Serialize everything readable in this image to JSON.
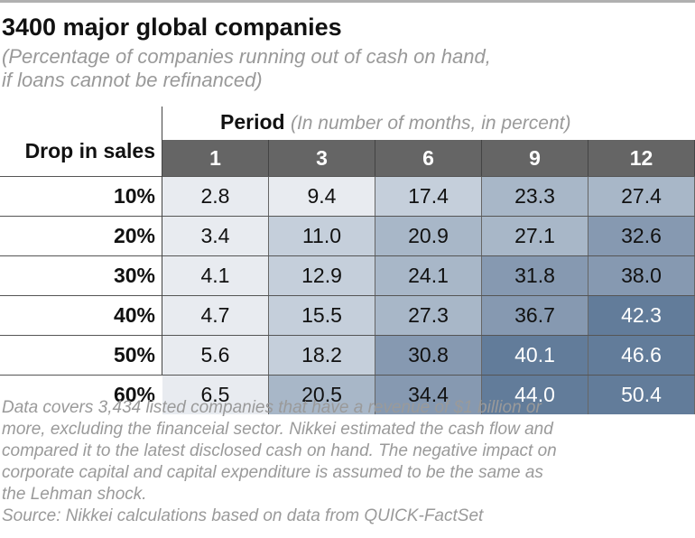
{
  "title": "3400 major global companies",
  "subtitle_lines": [
    "(Percentage of companies running out of cash on hand,",
    "if loans cannot be refinanced)"
  ],
  "chart_data": {
    "type": "heatmap",
    "column_group_label": "Period",
    "column_group_note": "(In number of months, in percent)",
    "row_header_label": "Drop in sales",
    "columns": [
      "1",
      "3",
      "6",
      "9",
      "12"
    ],
    "rows": [
      "10%",
      "20%",
      "30%",
      "40%",
      "50%",
      "60%"
    ],
    "values": [
      [
        2.8,
        9.4,
        17.4,
        23.3,
        27.4
      ],
      [
        3.4,
        11.0,
        20.9,
        27.1,
        32.6
      ],
      [
        4.1,
        12.9,
        24.1,
        31.8,
        38.0
      ],
      [
        4.7,
        15.5,
        27.3,
        36.7,
        42.3
      ],
      [
        5.6,
        18.2,
        30.8,
        40.1,
        46.6
      ],
      [
        6.5,
        20.5,
        34.4,
        44.0,
        50.4
      ]
    ],
    "color_scale": [
      {
        "max": 10,
        "color": "#e8ebf0"
      },
      {
        "max": 20,
        "color": "#c5cfdb"
      },
      {
        "max": 30,
        "color": "#a8b7c8"
      },
      {
        "max": 40,
        "color": "#8699b1"
      },
      {
        "max": 100,
        "color": "#627c9a"
      }
    ],
    "header_color": "#656565"
  },
  "footnote_lines": [
    "Data covers 3,434 listed companies that have a revenue of $1 billion or",
    "more, excluding the financeial sector. Nikkei estimated the cash flow and",
    "compared it to the latest disclosed cash on hand. The negative impact on",
    "corporate capital and capital expenditure is assumed to be the same as",
    "the Lehman shock.",
    "Source: Nikkei calculations based on data from QUICK-FactSet"
  ]
}
